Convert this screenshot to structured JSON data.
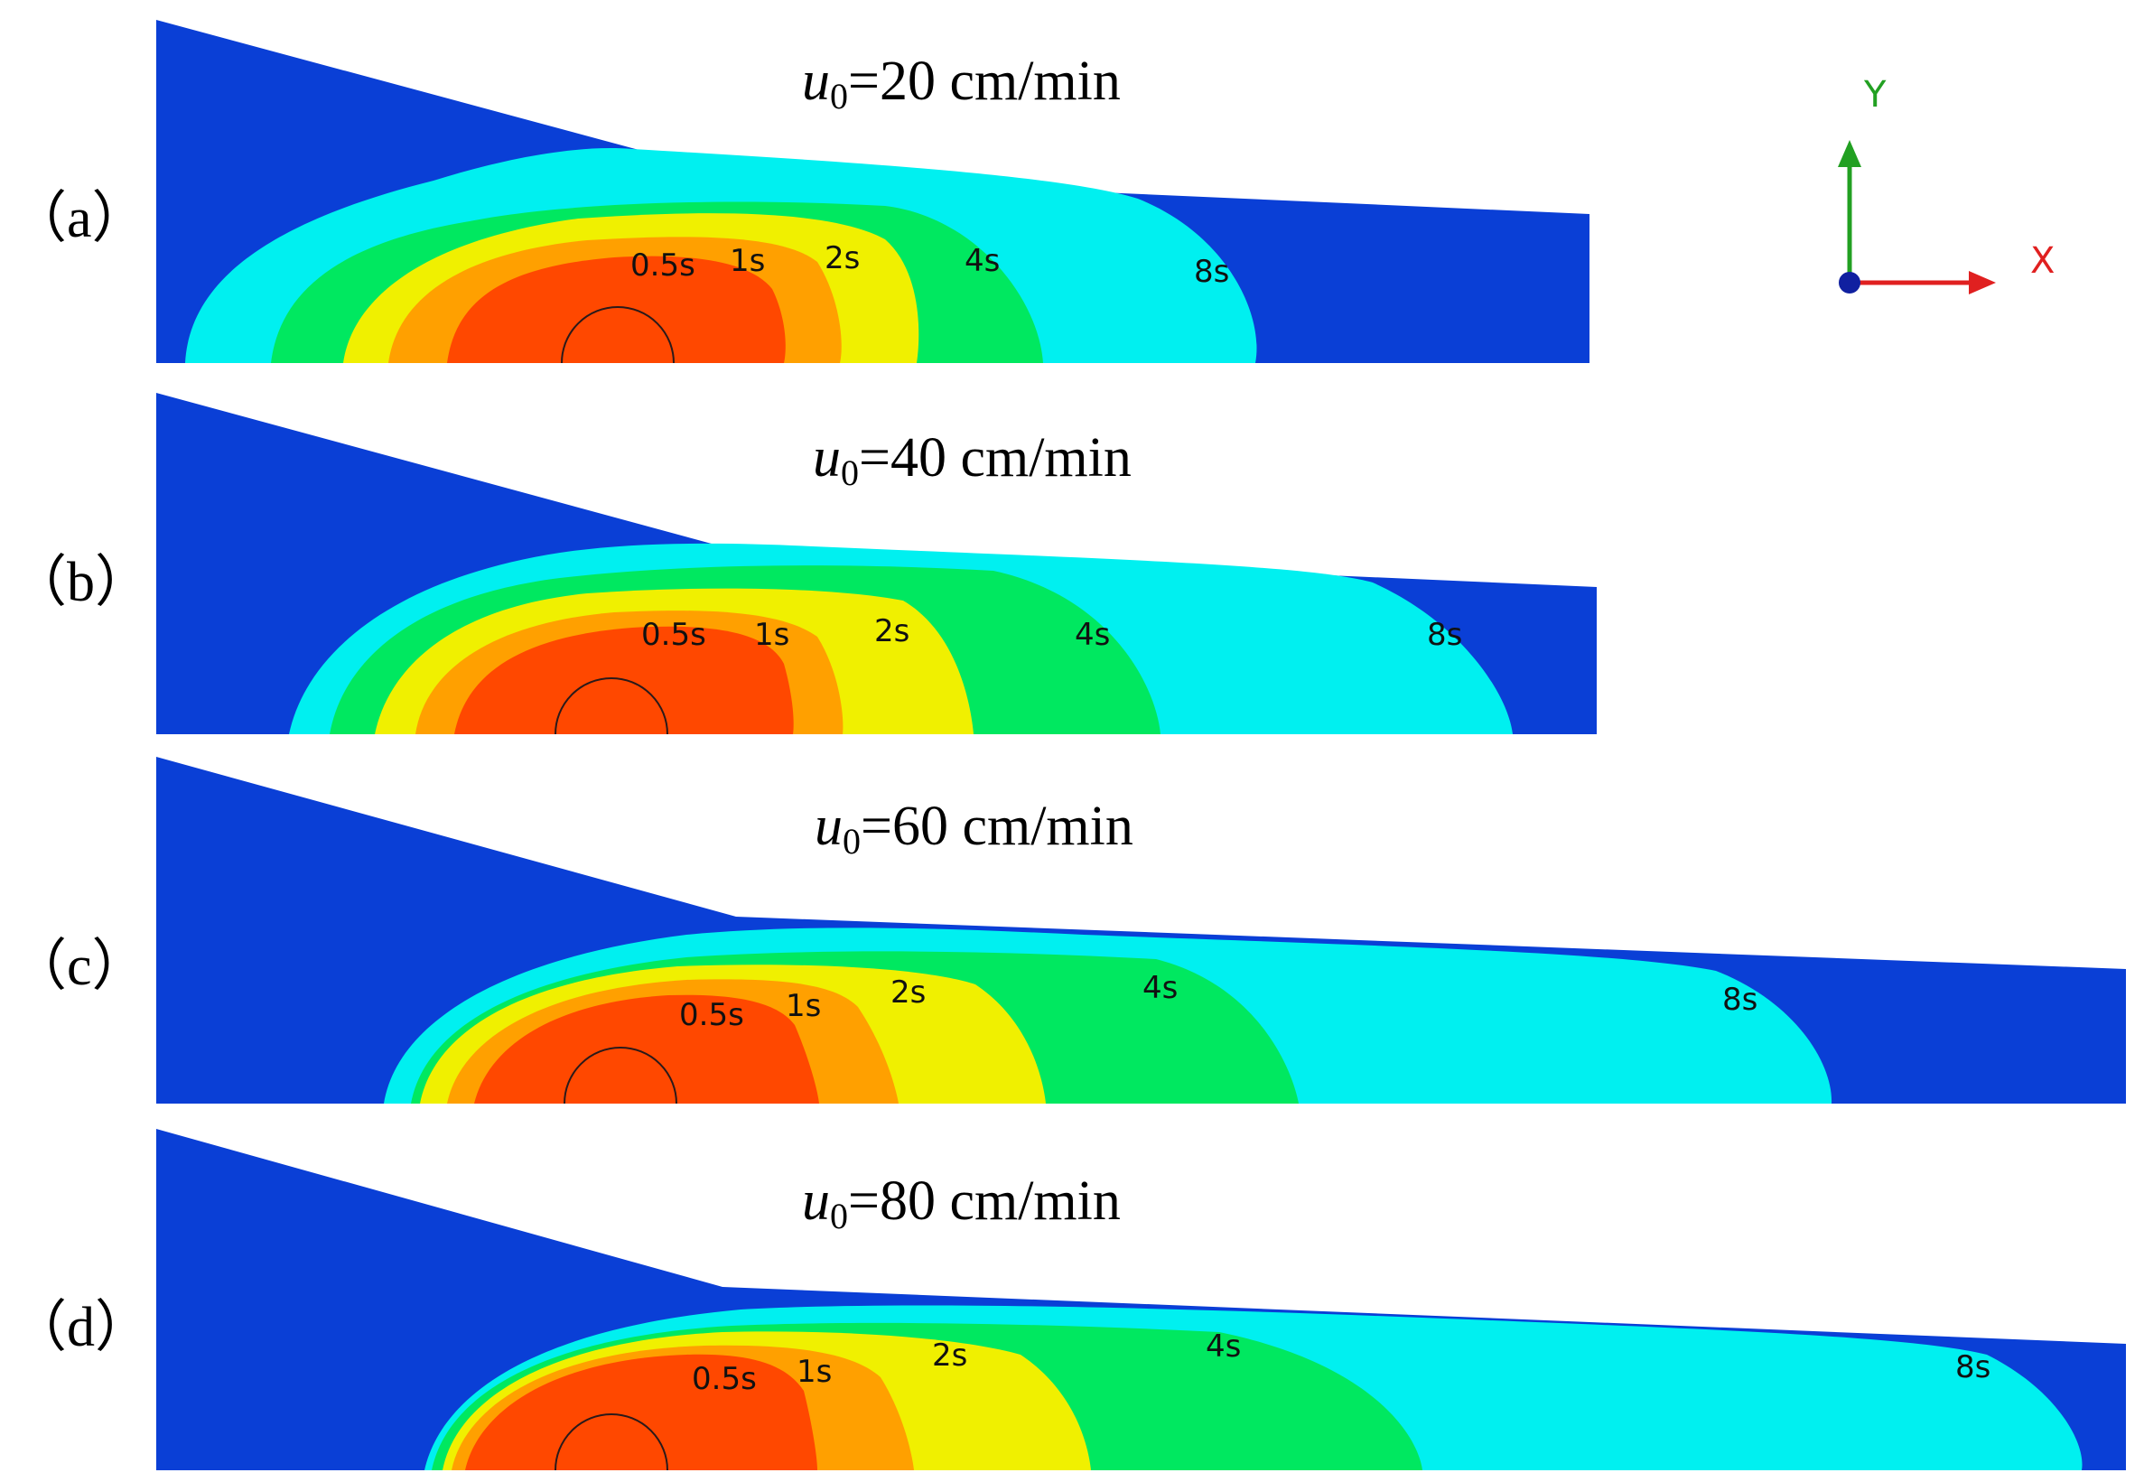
{
  "colors": {
    "outer": "#0a3fd6",
    "contour_8s": "#00f0f0",
    "contour_4s": "#00e860",
    "contour_2s": "#f0f000",
    "contour_1s": "#ffa000",
    "contour_05s": "#ff4800",
    "axis_y": "#22a022",
    "axis_x": "#e02020",
    "origin": "#1020a0"
  },
  "axes": {
    "x_label": "X",
    "y_label": "Y",
    "x_icon": "x-axis-arrow-icon",
    "y_icon": "y-axis-arrow-icon"
  },
  "panels": [
    {
      "id": "a",
      "label": "（a）",
      "title": {
        "sym": "u",
        "sub": "0",
        "rest": "=20 cm/min"
      },
      "contours": [
        {
          "time": "8s",
          "reach": 1.0
        },
        {
          "time": "4s",
          "reach": 0.6
        },
        {
          "time": "2s",
          "reach": 0.4
        },
        {
          "time": "1s",
          "reach": 0.28
        },
        {
          "time": "0.5s",
          "reach": 0.2
        }
      ]
    },
    {
      "id": "b",
      "label": "（b）",
      "title": {
        "sym": "u",
        "sub": "0",
        "rest": "=40 cm/min"
      },
      "contours": [
        {
          "time": "8s",
          "reach": 1.0
        },
        {
          "time": "4s",
          "reach": 0.53
        },
        {
          "time": "2s",
          "reach": 0.38
        },
        {
          "time": "1s",
          "reach": 0.26
        },
        {
          "time": "0.5s",
          "reach": 0.2
        }
      ]
    },
    {
      "id": "c",
      "label": "（c）",
      "title": {
        "sym": "u",
        "sub": "0",
        "rest": "=60 cm/min"
      },
      "contours": [
        {
          "time": "8s",
          "reach": 1.0
        },
        {
          "time": "4s",
          "reach": 0.56
        },
        {
          "time": "2s",
          "reach": 0.42
        },
        {
          "time": "1s",
          "reach": 0.32
        },
        {
          "time": "0.5s",
          "reach": 0.22
        }
      ]
    },
    {
      "id": "d",
      "label": "（d）",
      "title": {
        "sym": "u",
        "sub": "0",
        "rest": "=80 cm/min"
      },
      "contours": [
        {
          "time": "8s",
          "reach": 1.0
        },
        {
          "time": "4s",
          "reach": 0.58
        },
        {
          "time": "2s",
          "reach": 0.43
        },
        {
          "time": "1s",
          "reach": 0.3
        },
        {
          "time": "0.5s",
          "reach": 0.22
        }
      ]
    }
  ]
}
